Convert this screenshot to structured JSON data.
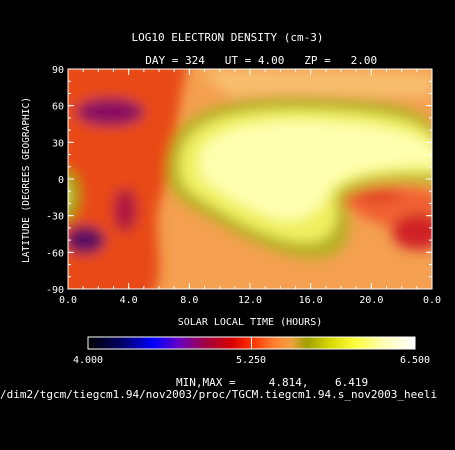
{
  "chart_data": {
    "type": "heatmap",
    "title": "LOG10 ELECTRON DENSITY (cm-3)",
    "subtitle": {
      "day_label": "DAY =",
      "day": "324",
      "ut_label": "UT =",
      "ut": "4.00",
      "zp_label": "ZP =",
      "zp": "2.00"
    },
    "xlabel": "SOLAR LOCAL TIME (HOURS)",
    "ylabel": "LATITUDE (DEGREES GEOGRAPHIC)",
    "xlim": [
      0,
      24
    ],
    "ylim": [
      -90,
      90
    ],
    "xticks": [
      "0.0",
      "4.0",
      "8.0",
      "12.0",
      "16.0",
      "20.0",
      "0.0"
    ],
    "yticks": [
      "90",
      "60",
      "30",
      "0",
      "-30",
      "-60",
      "-90"
    ],
    "colorbar": {
      "min_label": "4.000",
      "mid_label": "5.250",
      "max_label": "6.500",
      "min": 4.0,
      "max": 6.5
    },
    "minmax_label": "MIN,MAX =",
    "min_value": "4.814,",
    "max_value": "6.419",
    "source_path": "/dim2/tgcm/tiegcm1.94/nov2003/proc/TGCM.tiegcm1.94.s_nov2003_heeli"
  }
}
